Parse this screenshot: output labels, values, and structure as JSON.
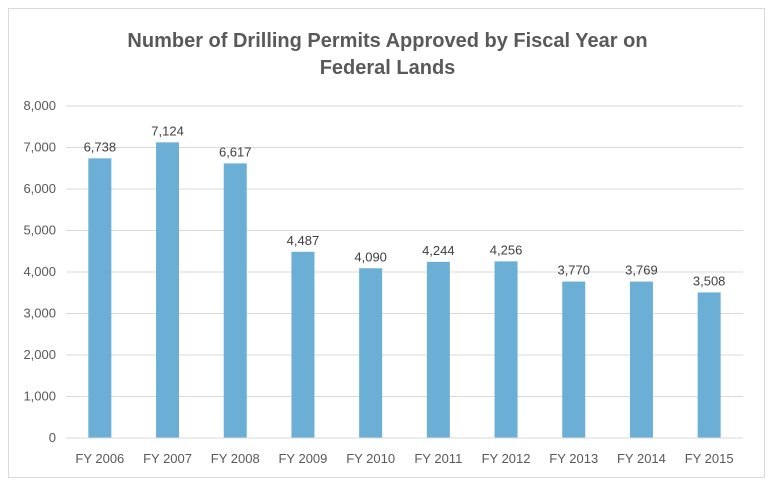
{
  "chart_data": {
    "type": "bar",
    "title": "Number of Drilling Permits Approved by Fiscal Year on\nFederal Lands",
    "xlabel": "",
    "ylabel": "",
    "categories": [
      "FY 2006",
      "FY 2007",
      "FY 2008",
      "FY 2009",
      "FY 2010",
      "FY 2011",
      "FY 2012",
      "FY 2013",
      "FY 2014",
      "FY 2015"
    ],
    "values": [
      6738,
      7124,
      6617,
      4487,
      4090,
      4244,
      4256,
      3770,
      3769,
      3508
    ],
    "data_labels": [
      "6,738",
      "7,124",
      "6,617",
      "4,487",
      "4,090",
      "4,244",
      "4,256",
      "3,770",
      "3,769",
      "3,508"
    ],
    "ylim": [
      0,
      8000
    ],
    "yticks": [
      0,
      1000,
      2000,
      3000,
      4000,
      5000,
      6000,
      7000,
      8000
    ],
    "ytick_labels": [
      "0",
      "1,000",
      "2,000",
      "3,000",
      "4,000",
      "5,000",
      "6,000",
      "7,000",
      "8,000"
    ],
    "grid": true,
    "legend": "none",
    "bar_color": "#6baed6",
    "grid_color": "#d9d9d9"
  }
}
